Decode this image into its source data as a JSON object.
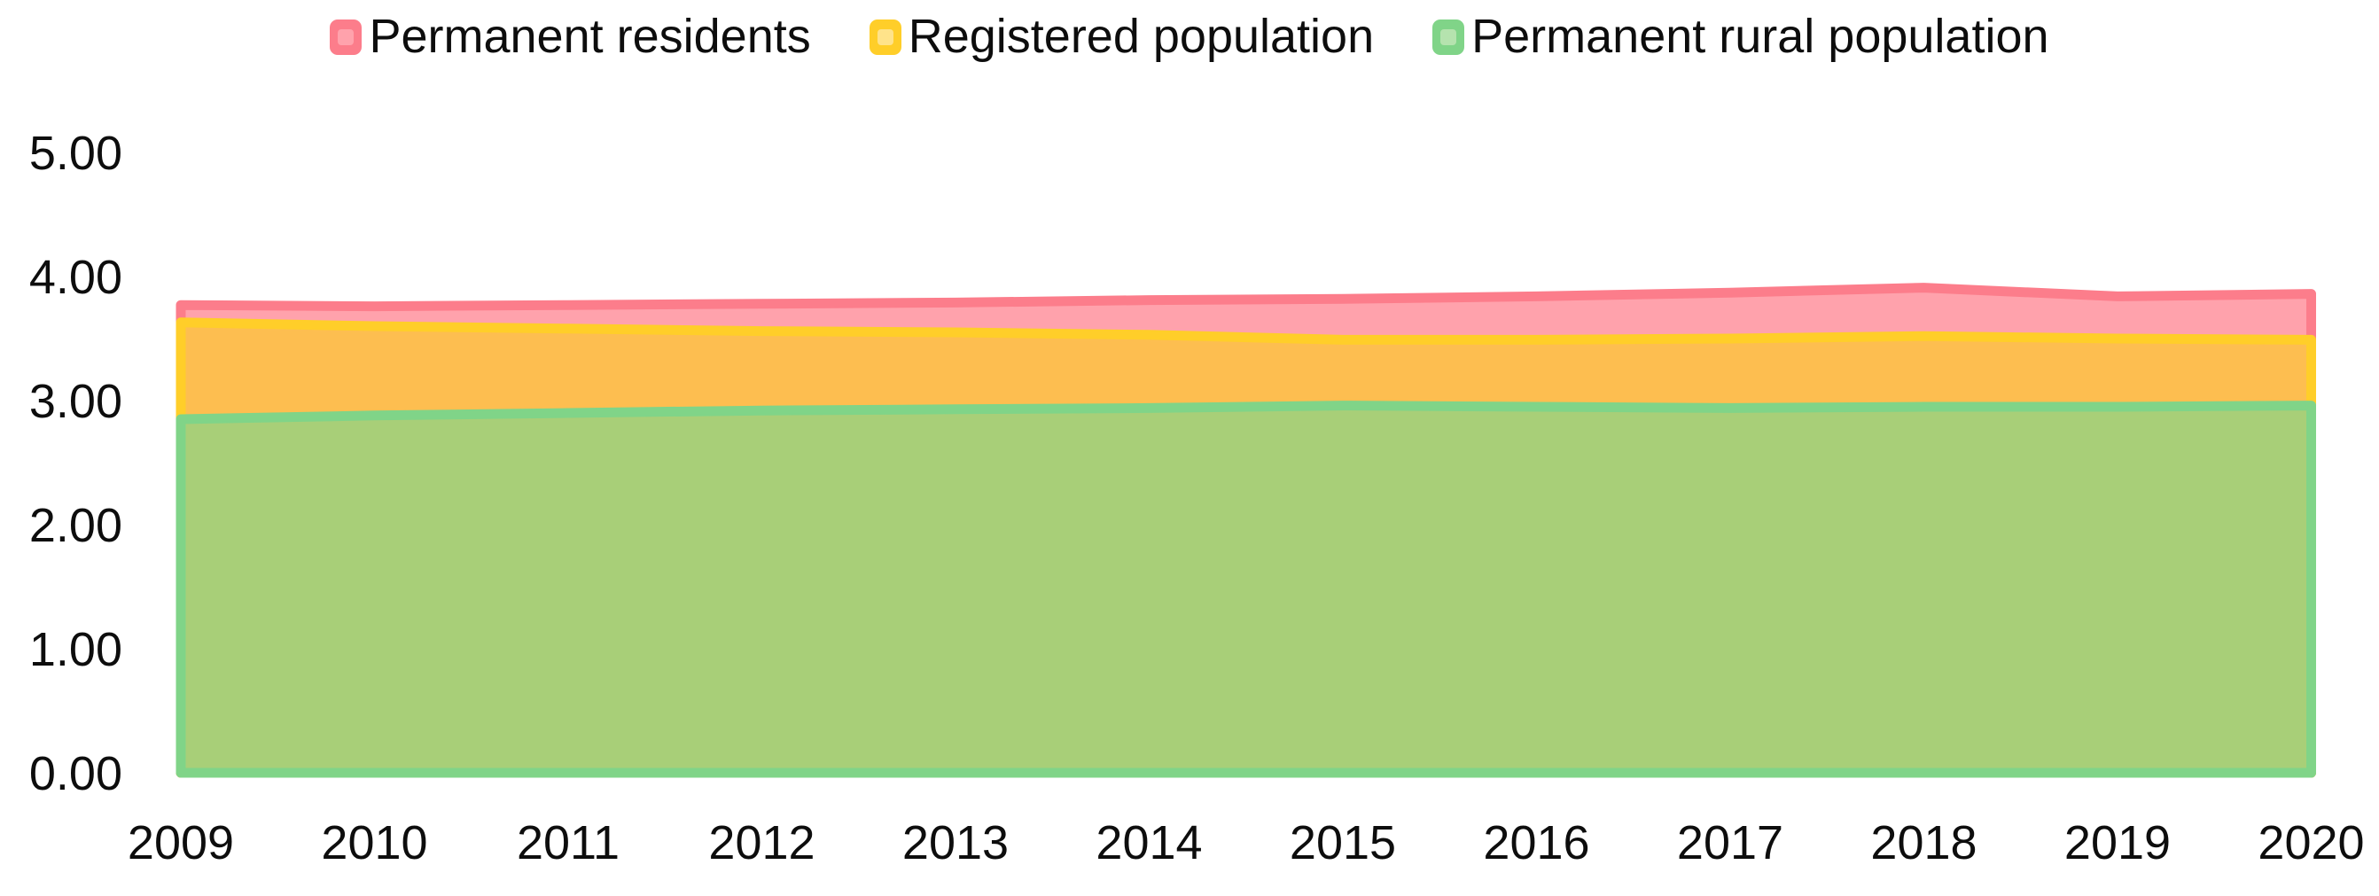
{
  "legend": {
    "items": [
      {
        "label": "Permanent residents",
        "swatch_outer": "#FC7D8B",
        "swatch_inner": "#FFA2AC"
      },
      {
        "label": "Registered population",
        "swatch_outer": "#FFCE29",
        "swatch_inner": "#FFE38A"
      },
      {
        "label": "Permanent rural population",
        "swatch_outer": "#80D488",
        "swatch_inner": "#B5E3AE"
      }
    ]
  },
  "chart_data": {
    "type": "area",
    "title": "",
    "xlabel": "",
    "ylabel": "",
    "x": [
      2009,
      2010,
      2011,
      2012,
      2013,
      2014,
      2015,
      2016,
      2017,
      2018,
      2019,
      2020
    ],
    "x_tick_labels": [
      "2009",
      "2010",
      "2011",
      "2012",
      "2013",
      "2014",
      "2015",
      "2016",
      "2017",
      "2018",
      "2019",
      "2020"
    ],
    "series": [
      {
        "name": "Permanent residents",
        "values": [
          3.77,
          3.76,
          3.77,
          3.78,
          3.79,
          3.81,
          3.82,
          3.84,
          3.87,
          3.91,
          3.84,
          3.86
        ],
        "stroke": "#FC7D8B",
        "fill": "#FFA2AC"
      },
      {
        "name": "Registered population",
        "values": [
          3.63,
          3.6,
          3.58,
          3.56,
          3.55,
          3.53,
          3.49,
          3.49,
          3.5,
          3.52,
          3.5,
          3.49
        ],
        "stroke": "#FFCE29",
        "fill": "#FDBE50"
      },
      {
        "name": "Permanent rural population",
        "values": [
          2.85,
          2.88,
          2.9,
          2.92,
          2.93,
          2.94,
          2.96,
          2.95,
          2.94,
          2.95,
          2.95,
          2.96
        ],
        "stroke": "#80D488",
        "fill": "#A8CF78"
      }
    ],
    "ylim": [
      0,
      5
    ],
    "y_ticks": [
      0,
      1,
      2,
      3,
      4,
      5
    ],
    "y_tick_labels": [
      "0.00",
      "1.00",
      "2.00",
      "3.00",
      "4.00",
      "5.00"
    ],
    "grid": false,
    "legend_position": "top",
    "text_color": "#0d0d0d",
    "background": "#ffffff"
  }
}
